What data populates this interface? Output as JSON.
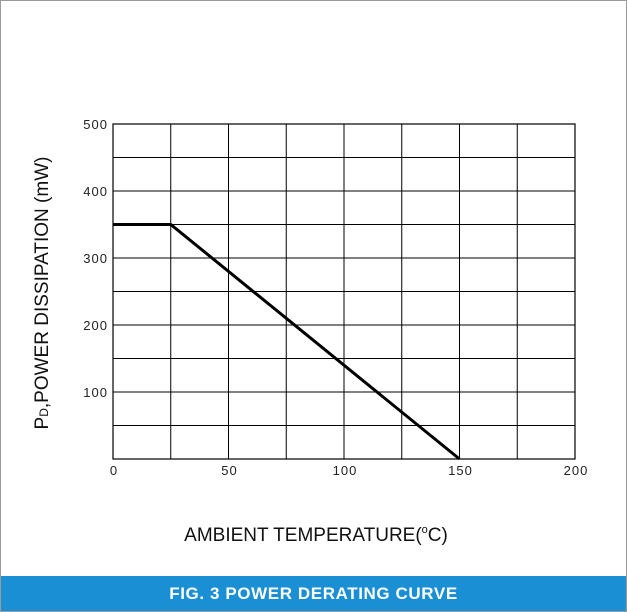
{
  "figure": {
    "caption": "FIG. 3 POWER DERATING CURVE",
    "caption_bg_color": "#1b8fd3",
    "curve_color": "#000000",
    "grid_color": "#000000"
  },
  "chart_data": {
    "type": "line",
    "title": "",
    "xlabel": "AMBIENT TEMPERATURE",
    "xlabel_unit_prefix": "(",
    "xlabel_unit_sup": "o",
    "xlabel_unit_suffix": "C)",
    "ylabel_main": "P",
    "ylabel_sub": "D",
    "ylabel_rest": ",POWER DISSIPATION (mW)",
    "xlim": [
      0,
      200
    ],
    "ylim": [
      0,
      500
    ],
    "x_ticks": [
      0,
      50,
      100,
      150,
      200
    ],
    "y_ticks": [
      100,
      200,
      300,
      400,
      500
    ],
    "x_gridlines": [
      0,
      25,
      50,
      75,
      100,
      125,
      150,
      175,
      200
    ],
    "y_gridlines": [
      0,
      50,
      100,
      150,
      200,
      250,
      300,
      350,
      400,
      450,
      500
    ],
    "grid": true,
    "series": [
      {
        "x": [
          0,
          25,
          150
        ],
        "y": [
          350,
          350,
          0
        ]
      }
    ]
  }
}
